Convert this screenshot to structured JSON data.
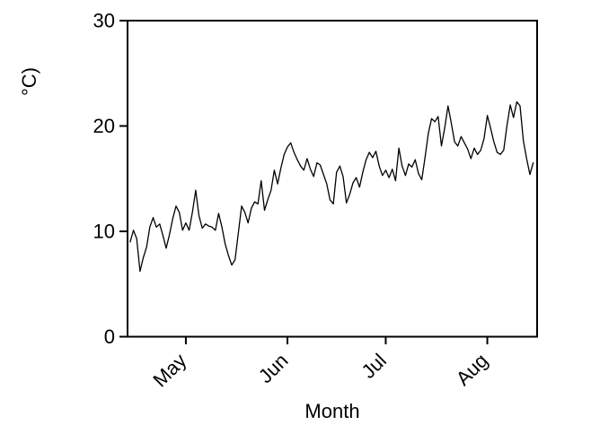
{
  "chart_data": {
    "type": "line",
    "title": "",
    "xlabel": "Month",
    "ylabel": "°C)",
    "ylim": [
      0,
      30
    ],
    "y_ticks": [
      0,
      10,
      20,
      30
    ],
    "x_ticks": [
      {
        "label": "May",
        "index": 17
      },
      {
        "label": "Jun",
        "index": 48
      },
      {
        "label": "Jul",
        "index": 78
      },
      {
        "label": "Aug",
        "index": 109
      }
    ],
    "grid": false,
    "legend": "none",
    "box": true,
    "line_color": "#000000",
    "background_color": "#ffffff",
    "x_description": "daily values from mid-April through mid-August",
    "values": [
      9.0,
      10.1,
      9.3,
      6.2,
      7.5,
      8.5,
      10.4,
      11.3,
      10.4,
      10.7,
      9.6,
      8.4,
      9.7,
      11.2,
      12.4,
      11.8,
      10.1,
      10.8,
      10.1,
      11.8,
      13.9,
      11.5,
      10.3,
      10.7,
      10.5,
      10.4,
      10.1,
      11.7,
      10.4,
      8.8,
      7.7,
      6.8,
      7.3,
      9.8,
      12.4,
      11.8,
      10.8,
      12.2,
      12.8,
      12.6,
      14.8,
      12.0,
      13.0,
      13.9,
      15.8,
      14.5,
      16.0,
      17.3,
      18.0,
      18.4,
      17.5,
      16.8,
      16.2,
      15.8,
      16.9,
      15.9,
      15.2,
      16.5,
      16.3,
      15.4,
      14.5,
      13.0,
      12.6,
      15.6,
      16.2,
      15.2,
      12.7,
      13.5,
      14.6,
      15.1,
      14.2,
      15.6,
      16.8,
      17.5,
      17.0,
      17.6,
      16.2,
      15.3,
      15.8,
      15.1,
      15.9,
      14.8,
      17.9,
      16.2,
      15.3,
      16.4,
      16.1,
      16.8,
      15.5,
      14.9,
      17.0,
      19.3,
      20.7,
      20.4,
      20.9,
      18.1,
      19.8,
      21.9,
      20.3,
      18.5,
      18.1,
      19.0,
      18.4,
      17.8,
      16.9,
      17.9,
      17.3,
      17.7,
      18.8,
      21.0,
      19.8,
      18.5,
      17.5,
      17.3,
      17.7,
      20.0,
      22.0,
      20.8,
      22.3,
      21.9,
      18.6,
      16.9,
      15.4,
      16.5
    ]
  }
}
